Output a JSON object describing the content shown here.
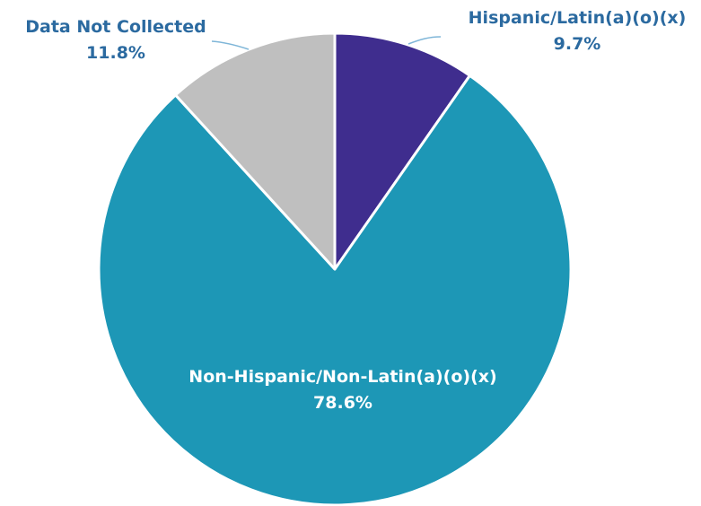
{
  "chart_data": {
    "type": "pie",
    "slices": [
      {
        "label": "Hispanic/Latin(a)(o)(x)",
        "value": 9.7,
        "value_label": "9.7%",
        "color": "#3f2d8e"
      },
      {
        "label": "Non-Hispanic/Non-Latin(a)(o)(x)",
        "value": 78.6,
        "value_label": "78.6%",
        "color": "#1d97b6"
      },
      {
        "label": "Data Not Collected",
        "value": 11.8,
        "value_label": "11.8%",
        "color": "#bfbfbf"
      }
    ],
    "start_angle": "top, clockwise",
    "legend": "none",
    "label_colors": {
      "outside": "#2b6aa0",
      "inside": "#ffffff"
    },
    "leader_line_color": "#7fb6d8"
  }
}
